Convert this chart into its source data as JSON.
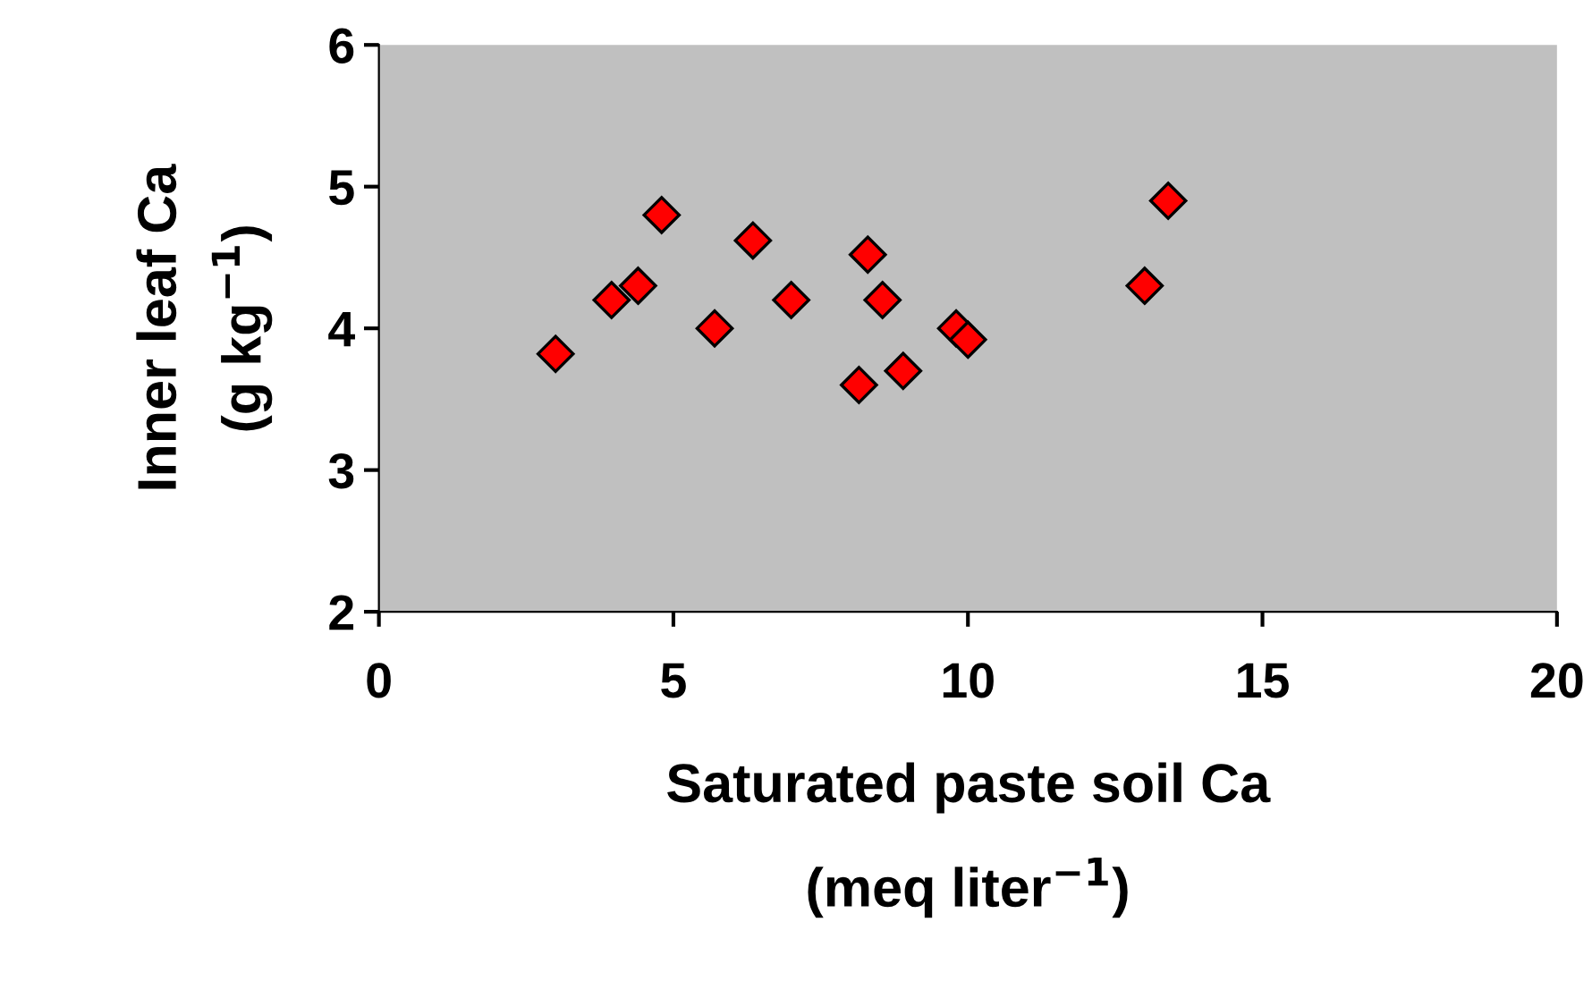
{
  "chart_data": {
    "type": "scatter",
    "xlabel": "Saturated paste soil Ca\n(meq liter$^{−1}$)",
    "ylabel": "Inner leaf Ca\n(g kg$^{−1}$)",
    "x": [
      3.0,
      3.95,
      4.4,
      4.8,
      5.7,
      6.35,
      7.0,
      8.15,
      8.3,
      8.55,
      8.9,
      9.8,
      10.0,
      13.0,
      13.4
    ],
    "series": [
      {
        "color": "#ff0000",
        "values": [
          3.82,
          4.2,
          4.3,
          4.8,
          4.0,
          4.62,
          4.2,
          3.6,
          4.52,
          4.2,
          3.7,
          4.0,
          3.92,
          4.3,
          4.9
        ]
      }
    ],
    "marker": "diamond",
    "xlim": [
      0,
      20
    ],
    "xticks": [
      0,
      5,
      10,
      15,
      20
    ],
    "ylim": [
      2,
      6
    ],
    "yticks": [
      2,
      3,
      4,
      5,
      6
    ],
    "grid": false,
    "legend": false
  }
}
